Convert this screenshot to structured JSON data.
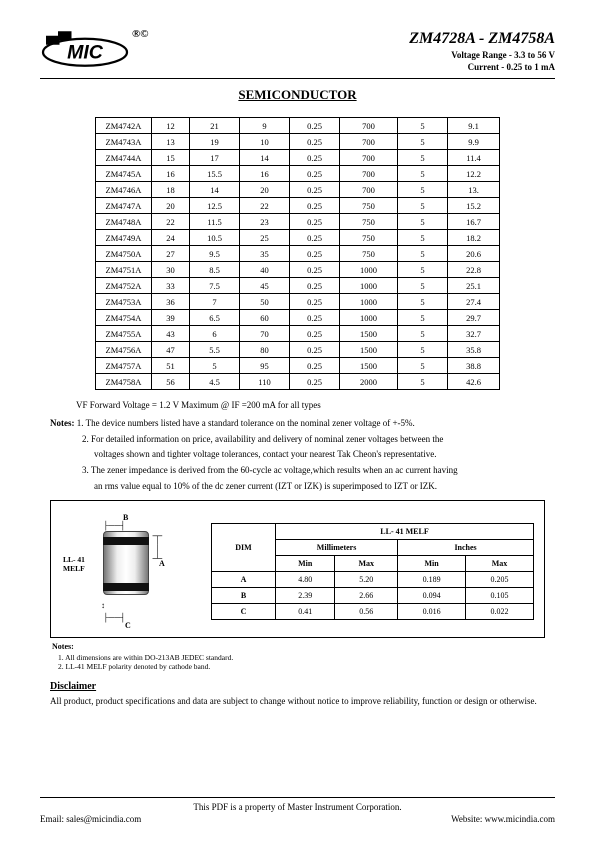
{
  "header": {
    "rc": "®©",
    "part_title": "ZM4728A - ZM4758A",
    "voltage_line": "Voltage Range - 3.3 to 56 V",
    "current_line": "Current - 0.25 to 1 mA"
  },
  "section_title": "SEMICONDUCTOR",
  "table": {
    "rows": [
      [
        "ZM4742A",
        "12",
        "21",
        "9",
        "0.25",
        "700",
        "5",
        "9.1"
      ],
      [
        "ZM4743A",
        "13",
        "19",
        "10",
        "0.25",
        "700",
        "5",
        "9.9"
      ],
      [
        "ZM4744A",
        "15",
        "17",
        "14",
        "0.25",
        "700",
        "5",
        "11.4"
      ],
      [
        "ZM4745A",
        "16",
        "15.5",
        "16",
        "0.25",
        "700",
        "5",
        "12.2"
      ],
      [
        "ZM4746A",
        "18",
        "14",
        "20",
        "0.25",
        "700",
        "5",
        "13."
      ],
      [
        "ZM4747A",
        "20",
        "12.5",
        "22",
        "0.25",
        "750",
        "5",
        "15.2"
      ],
      [
        "ZM4748A",
        "22",
        "11.5",
        "23",
        "0.25",
        "750",
        "5",
        "16.7"
      ],
      [
        "ZM4749A",
        "24",
        "10.5",
        "25",
        "0.25",
        "750",
        "5",
        "18.2"
      ],
      [
        "ZM4750A",
        "27",
        "9.5",
        "35",
        "0.25",
        "750",
        "5",
        "20.6"
      ],
      [
        "ZM4751A",
        "30",
        "8.5",
        "40",
        "0.25",
        "1000",
        "5",
        "22.8"
      ],
      [
        "ZM4752A",
        "33",
        "7.5",
        "45",
        "0.25",
        "1000",
        "5",
        "25.1"
      ],
      [
        "ZM4753A",
        "36",
        "7",
        "50",
        "0.25",
        "1000",
        "5",
        "27.4"
      ],
      [
        "ZM4754A",
        "39",
        "6.5",
        "60",
        "0.25",
        "1000",
        "5",
        "29.7"
      ],
      [
        "ZM4755A",
        "43",
        "6",
        "70",
        "0.25",
        "1500",
        "5",
        "32.7"
      ],
      [
        "ZM4756A",
        "47",
        "5.5",
        "80",
        "0.25",
        "1500",
        "5",
        "35.8"
      ],
      [
        "ZM4757A",
        "51",
        "5",
        "95",
        "0.25",
        "1500",
        "5",
        "38.8"
      ],
      [
        "ZM4758A",
        "56",
        "4.5",
        "110",
        "0.25",
        "2000",
        "5",
        "42.6"
      ]
    ]
  },
  "vf_note": "VF Forward Voltage = 1.2 V Maximum @ IF =200 mA for all types",
  "notes": {
    "label": "Notes:",
    "n1": "1. The device numbers listed have a standard tolerance on the nominal zener voltage of +-5%.",
    "n2a": "2. For detailed information on price, availability and delivery of nominal zener voltages between the",
    "n2b": "voltages shown and tighter voltage tolerances, contact your nearest Tak Cheon's representative.",
    "n3a": "3. The zener impedance is derived from the 60-cycle ac voltage,which results when an ac current having",
    "n3b": "an rms value equal to 10% of the dc zener current (IZT or IZK) is superimposed to IZT or IZK."
  },
  "dim": {
    "package_label": "LL- 41\nMELF",
    "B": "B",
    "A": "A",
    "C": "C",
    "table_title": "LL- 41 MELF",
    "dim_label": "DIM",
    "mm_label": "Millimeters",
    "in_label": "Inches",
    "min": "Min",
    "max": "Max",
    "rows": [
      {
        "d": "A",
        "mm_min": "4.80",
        "mm_max": "5.20",
        "in_min": "0.189",
        "in_max": "0.205"
      },
      {
        "d": "B",
        "mm_min": "2.39",
        "mm_max": "2.66",
        "in_min": "0.094",
        "in_max": "0.105"
      },
      {
        "d": "C",
        "mm_min": "0.41",
        "mm_max": "0.56",
        "in_min": "0.016",
        "in_max": "0.022"
      }
    ],
    "notes_label": "Notes:",
    "note1": "1.    All dimensions are within DO-213AB JEDEC standard.",
    "note2": "2.    LL-41 MELF polarity denoted by cathode band."
  },
  "disclaimer": {
    "heading": "Disclaimer",
    "text": "All product, product specifications and data are subject to change without notice to improve reliability, function or design or otherwise."
  },
  "footer": {
    "line1": "This PDF is a property of Master Instrument Corporation.",
    "email": "Email: sales@micindia.com",
    "website": "Website: www.micindia.com"
  }
}
